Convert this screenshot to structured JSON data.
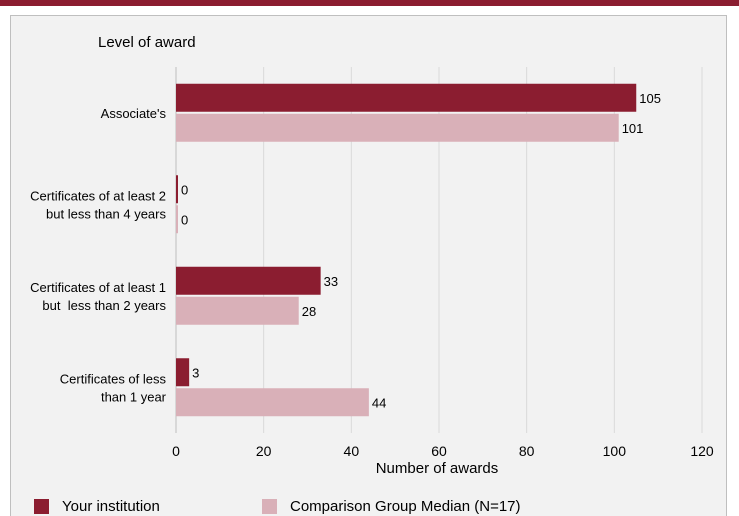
{
  "colors": {
    "top_rule": "#8b1d30",
    "panel_background": "#f2f2f2",
    "gridline": "#d9d9d9",
    "your_institution": "#8b1d30",
    "comparison_group": "#d9b0b8"
  },
  "chart_data": {
    "type": "bar",
    "orientation": "horizontal",
    "title": "",
    "category_axis_label": "Level of award",
    "value_axis_label": "Number of awards",
    "categories": [
      "Associate's",
      "Certificates of at least 2 but less than 4 years",
      "Certificates of at least 1 but  less than 2 years",
      "Certificates of less than 1 year"
    ],
    "category_label_lines": [
      [
        "Associate's"
      ],
      [
        "Certificates of at least 2",
        "but less than 4 years"
      ],
      [
        "Certificates of at least 1",
        "but  less than 2 years"
      ],
      [
        "Certificates of less",
        "than 1 year"
      ]
    ],
    "series": [
      {
        "name": "Your institution",
        "color": "#8b1d30",
        "values": [
          105,
          0,
          33,
          3
        ]
      },
      {
        "name": "Comparison Group Median (N=17)",
        "color": "#d9b0b8",
        "values": [
          101,
          0,
          28,
          44
        ]
      }
    ],
    "xlim": [
      0,
      120
    ],
    "ticks": [
      0,
      20,
      40,
      60,
      80,
      100,
      120
    ],
    "grid": true,
    "data_labels": true,
    "legend_position": "bottom"
  },
  "legend": {
    "items": [
      {
        "label": "Your institution",
        "color": "#8b1d30"
      },
      {
        "label": "Comparison Group Median (N=17)",
        "color": "#d9b0b8"
      }
    ]
  }
}
